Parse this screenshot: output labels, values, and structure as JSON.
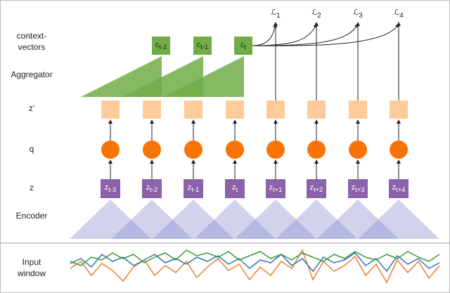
{
  "row_labels": {
    "context_vectors": [
      "context-",
      "vectors"
    ],
    "aggregator": "Aggregator",
    "z_prime": "z'",
    "q": "q",
    "z": "z",
    "encoder": "Encoder",
    "input_window": [
      "Input",
      "window"
    ]
  },
  "context_vectors": [
    {
      "base": "c",
      "sub": "t-2"
    },
    {
      "base": "c",
      "sub": "t-1"
    },
    {
      "base": "c",
      "sub": "t"
    }
  ],
  "latents": [
    {
      "base": "z",
      "sub": "t-3"
    },
    {
      "base": "z",
      "sub": "t-2"
    },
    {
      "base": "z",
      "sub": "t-1"
    },
    {
      "base": "z",
      "sub": "t"
    },
    {
      "base": "z",
      "sub": "t+1"
    },
    {
      "base": "z",
      "sub": "t+2"
    },
    {
      "base": "z",
      "sub": "t+3"
    },
    {
      "base": "z",
      "sub": "t+4"
    }
  ],
  "losses": [
    {
      "base": "ℒ",
      "sub": "1"
    },
    {
      "base": "ℒ",
      "sub": "2"
    },
    {
      "base": "ℒ",
      "sub": "3"
    },
    {
      "base": "ℒ",
      "sub": "4"
    }
  ]
}
